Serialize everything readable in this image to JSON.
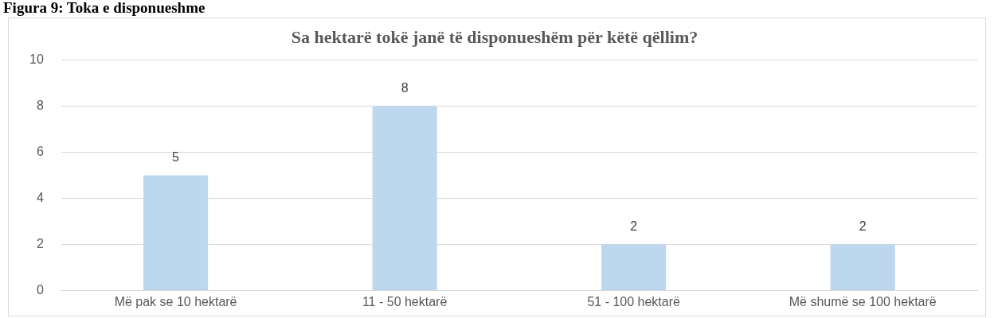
{
  "chart_data": {
    "type": "bar",
    "title": "Sa hektarë tokë janë të disponueshëm për këtë qëllim?",
    "annotations": [
      "Figura 9: Toka e disponueshme"
    ],
    "categories": [
      "Më pak se 10 hektarë",
      "11 - 50 hektarë",
      "51 - 100 hektarë",
      "Më shumë se 100 hektarë"
    ],
    "values": [
      5,
      8,
      2,
      2
    ],
    "color": "#bdd7ee",
    "ylim": [
      0,
      10
    ],
    "yticks": [
      0,
      2,
      4,
      6,
      8,
      10
    ],
    "grid": "y",
    "data_labels": true
  }
}
